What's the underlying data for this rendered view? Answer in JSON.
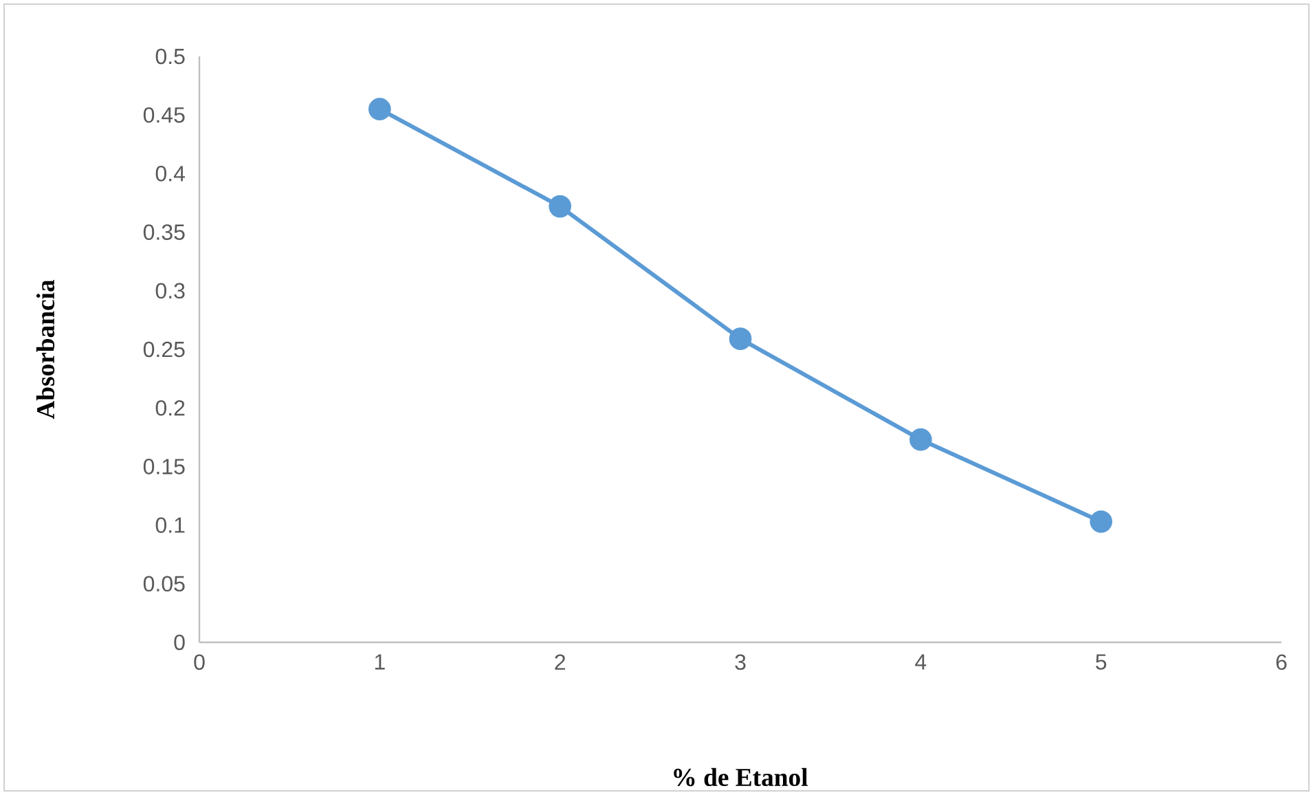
{
  "chart_data": {
    "type": "line",
    "xlabel": "% de Etanol",
    "ylabel": "Absorbancia",
    "x": [
      1,
      2,
      3,
      4,
      5
    ],
    "series": [
      {
        "color": "#5b9bd5",
        "values": [
          0.455,
          0.372,
          0.259,
          0.173,
          0.103
        ]
      }
    ],
    "xlim": [
      0,
      6
    ],
    "xticks": [
      0,
      1,
      2,
      3,
      4,
      5,
      6
    ],
    "ylim": [
      0,
      0.5
    ],
    "yticks": [
      0,
      0.05,
      0.1,
      0.15,
      0.2,
      0.25,
      0.3,
      0.35,
      0.4,
      0.45,
      0.5
    ],
    "marker": "circle",
    "line_style": "solid",
    "grid": false
  }
}
